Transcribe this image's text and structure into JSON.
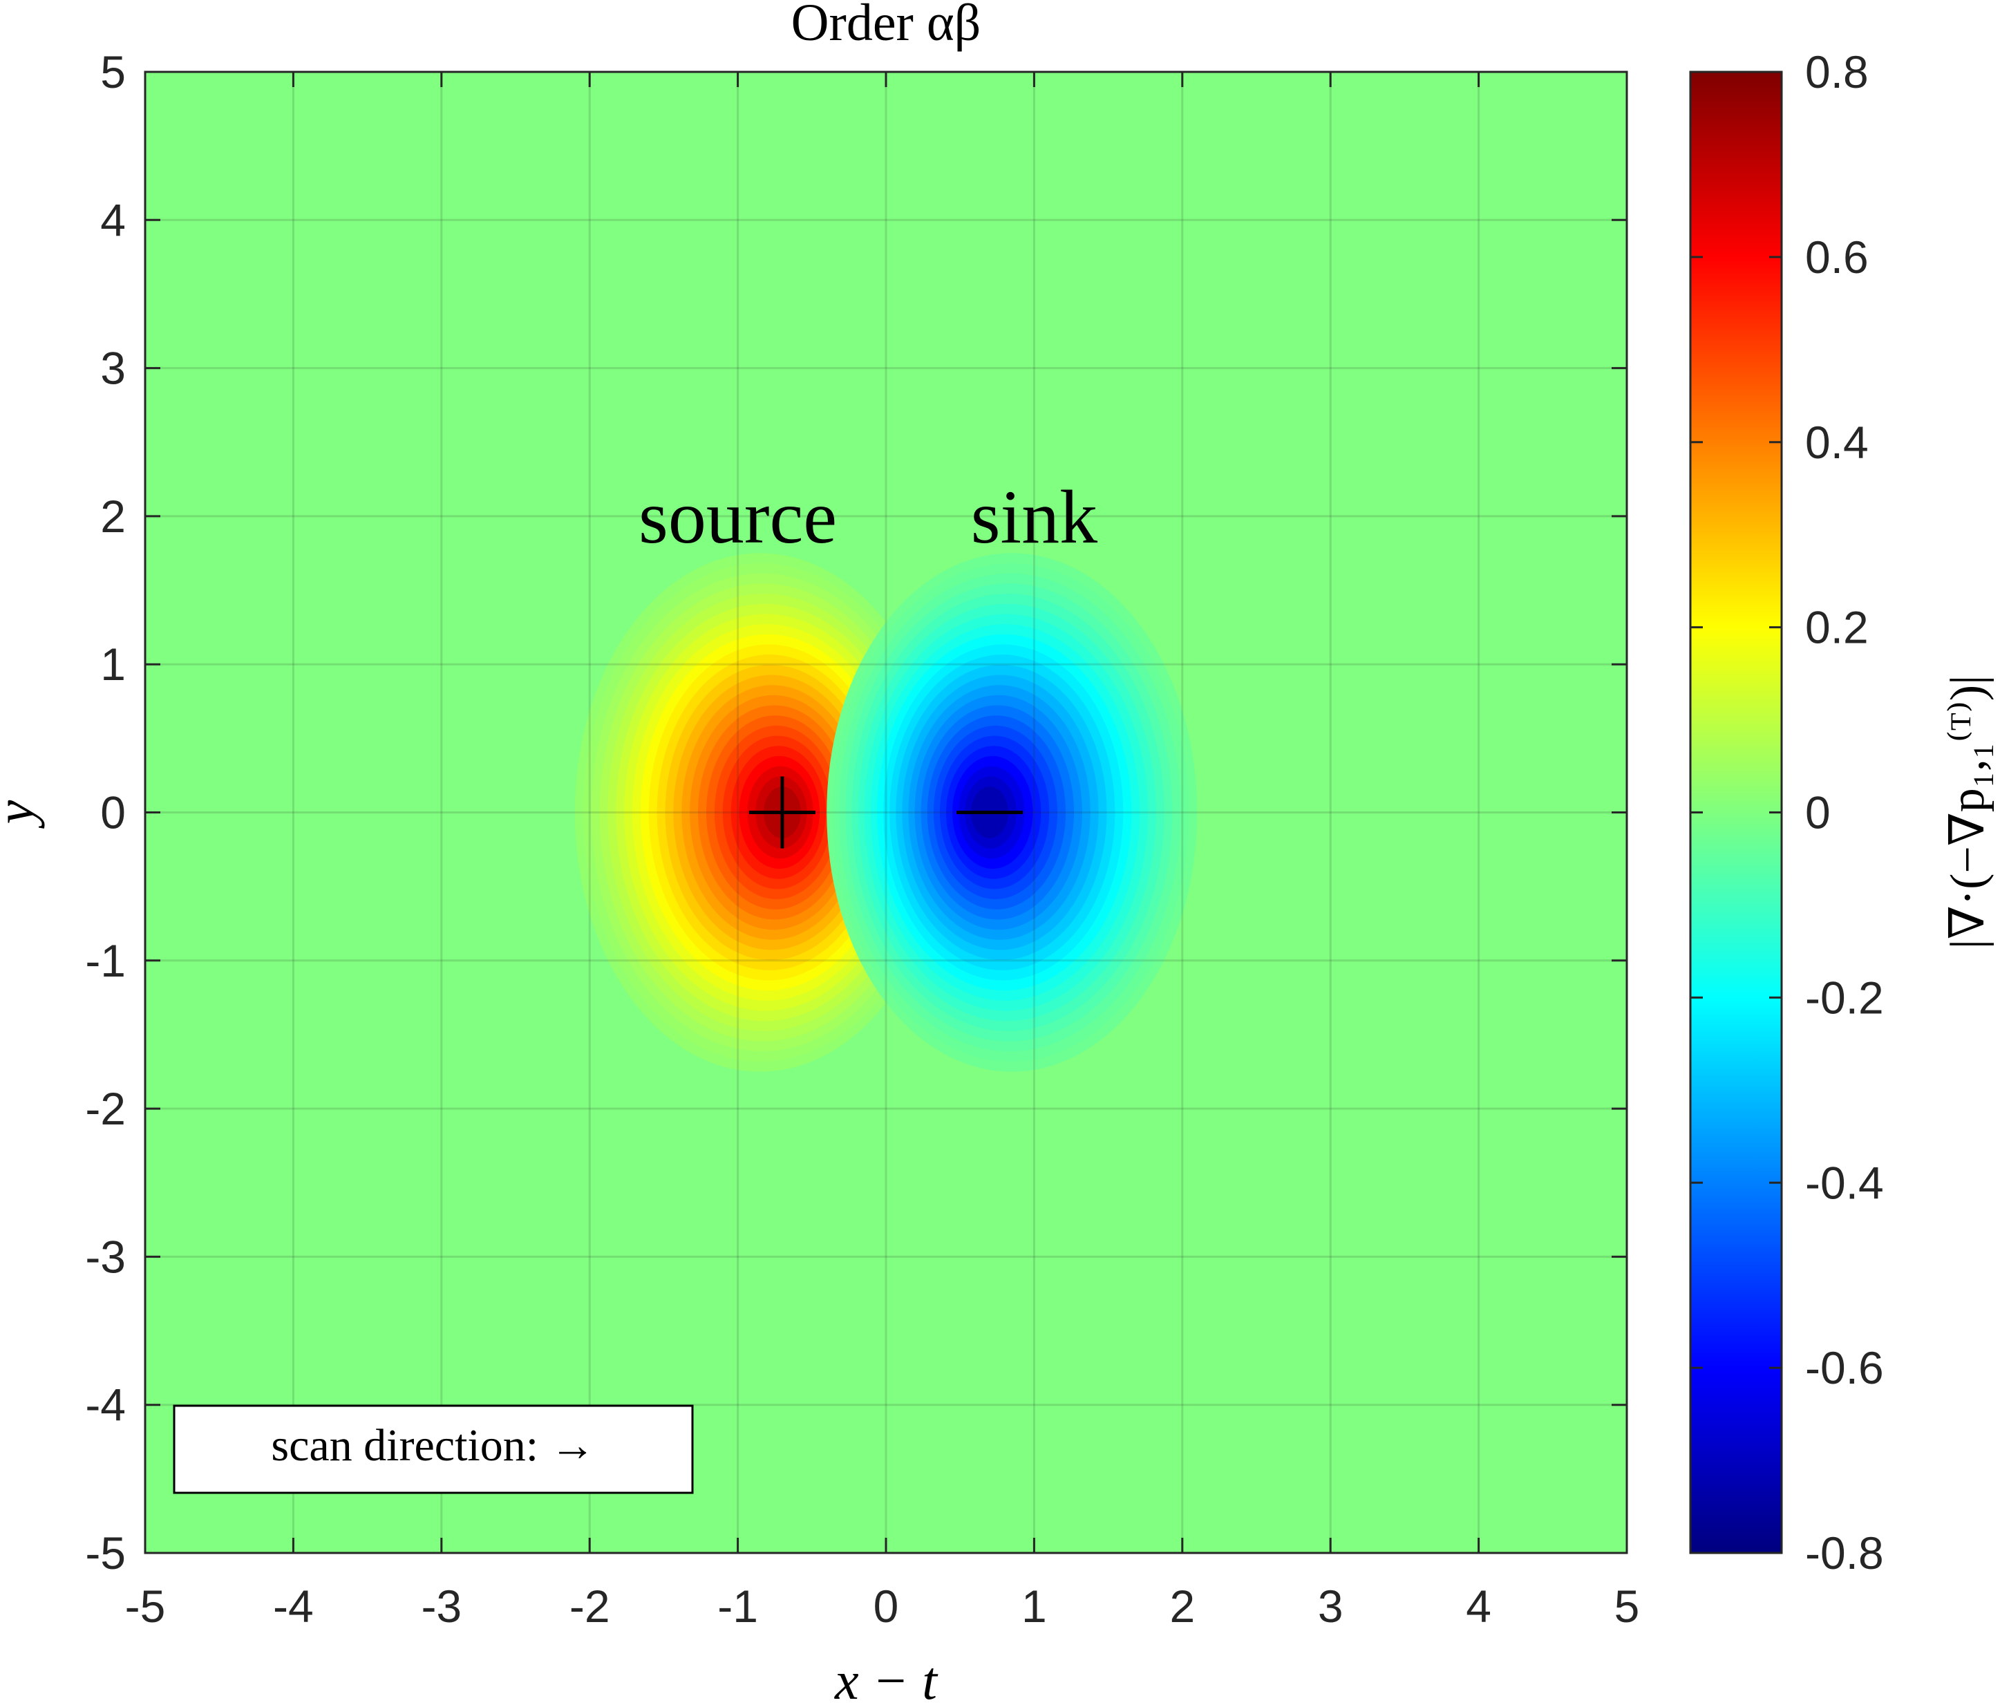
{
  "chart_data": {
    "type": "heatmap",
    "title": "Order αβ",
    "xlabel": "x − t",
    "ylabel": "y",
    "colorbar_label": "|∇·(−∇p₁,₁⁽ᵀ⁾)|",
    "xlim": [
      -5,
      5
    ],
    "ylim": [
      -5,
      5
    ],
    "clim": [
      -0.8,
      0.8
    ],
    "x_ticks": [
      -5,
      -4,
      -3,
      -2,
      -1,
      0,
      1,
      2,
      3,
      4,
      5
    ],
    "y_ticks": [
      -5,
      -4,
      -3,
      -2,
      -1,
      0,
      1,
      2,
      3,
      4,
      5
    ],
    "colorbar_ticks": [
      -0.8,
      -0.6,
      -0.4,
      -0.2,
      0,
      0.2,
      0.4,
      0.6,
      0.8
    ],
    "x_tick_labels": [
      "-5",
      "-4",
      "-3",
      "-2",
      "-1",
      "0",
      "1",
      "2",
      "3",
      "4",
      "5"
    ],
    "y_tick_labels": [
      "-5",
      "-4",
      "-3",
      "-2",
      "-1",
      "0",
      "1",
      "2",
      "3",
      "4",
      "5"
    ],
    "colorbar_tick_labels": [
      "-0.8",
      "-0.6",
      "-0.4",
      "-0.2",
      "0",
      "0.2",
      "0.4",
      "0.6",
      "0.8"
    ],
    "colormap": "jet",
    "grid": true,
    "field": {
      "description": "dipole: source (positive) left of origin, sink (negative) right of origin",
      "source": {
        "x": -0.7,
        "y": 0,
        "peak": 0.72
      },
      "sink": {
        "x": 0.7,
        "y": 0,
        "peak": -0.72
      }
    },
    "annotations": [
      {
        "text": "source",
        "x": -1.0,
        "y": 2.0
      },
      {
        "text": "sink",
        "x": 1.0,
        "y": 2.0
      },
      {
        "text": "+",
        "x": -0.7,
        "y": 0
      },
      {
        "text": "−",
        "x": 0.7,
        "y": 0
      }
    ],
    "legend_box": {
      "text": "scan direction: →",
      "placement": "bottom-left"
    }
  }
}
